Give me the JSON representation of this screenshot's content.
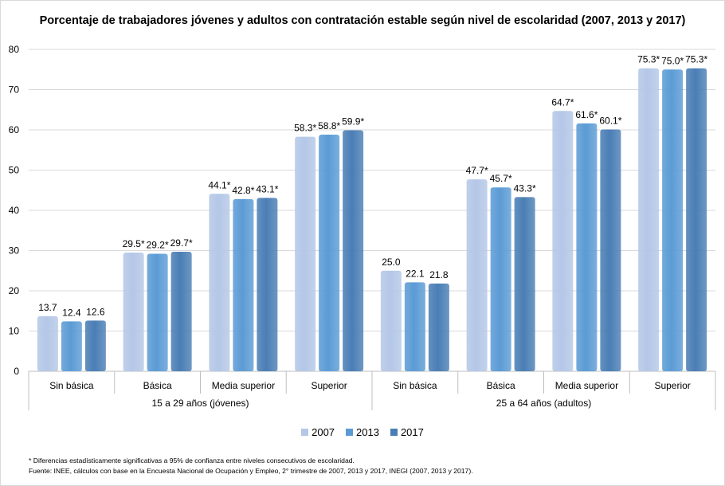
{
  "chart_data": {
    "type": "bar",
    "title": "Porcentaje de trabajadores jóvenes y adultos con contratación estable según nivel de escolaridad (2007, 2013 y 2017)",
    "groups": [
      {
        "label": "15 a 29 años (jóvenes)",
        "categories": [
          "Sin básica",
          "Básica",
          "Media superior",
          "Superior"
        ]
      },
      {
        "label": "25 a 64 años  (adultos)",
        "categories": [
          "Sin básica",
          "Básica",
          "Media superior",
          "Superior"
        ]
      }
    ],
    "series": [
      {
        "name": "2007",
        "color": "#b4c7e7",
        "values": [
          13.7,
          29.5,
          44.1,
          58.3,
          25.0,
          47.7,
          64.7,
          75.3
        ],
        "labels": [
          "13.7",
          "29.5*",
          "44.1*",
          "58.3*",
          "25.0",
          "47.7*",
          "64.7*",
          "75.3*"
        ]
      },
      {
        "name": "2013",
        "color": "#5b9bd5",
        "values": [
          12.4,
          29.2,
          42.8,
          58.8,
          22.1,
          45.7,
          61.6,
          75.0
        ],
        "labels": [
          "12.4",
          "29.2*",
          "42.8*",
          "58.8*",
          "22.1",
          "45.7*",
          "61.6*",
          "75.0*"
        ]
      },
      {
        "name": "2017",
        "color": "#4a7eb5",
        "values": [
          12.6,
          29.7,
          43.1,
          59.9,
          21.8,
          43.3,
          60.1,
          75.3
        ],
        "labels": [
          "12.6",
          "29.7*",
          "43.1*",
          "59.9*",
          "21.8",
          "43.3*",
          "60.1*",
          "75.3*"
        ]
      }
    ],
    "ylim": [
      0,
      80
    ],
    "yticks": [
      0,
      10,
      20,
      30,
      40,
      50,
      60,
      70,
      80
    ],
    "grid": true,
    "legend_position": "bottom"
  },
  "notes": {
    "note1": "* Diferencias estadísticamente significativas a 95% de confianza entre niveles consecutivos de escolaridad.",
    "note2": "Fuente: INEE, cálculos con base en la Encuesta Nacional de Ocupación y Empleo, 2° trimestre de 2007, 2013 y 2017,  INEGI (2007, 2013 y 2017)."
  }
}
